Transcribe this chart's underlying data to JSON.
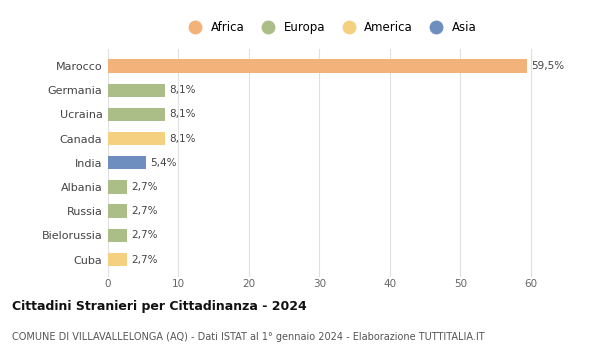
{
  "countries": [
    "Marocco",
    "Germania",
    "Ucraina",
    "Canada",
    "India",
    "Albania",
    "Russia",
    "Bielorussia",
    "Cuba"
  ],
  "values": [
    59.5,
    8.1,
    8.1,
    8.1,
    5.4,
    2.7,
    2.7,
    2.7,
    2.7
  ],
  "labels": [
    "59,5%",
    "8,1%",
    "8,1%",
    "8,1%",
    "5,4%",
    "2,7%",
    "2,7%",
    "2,7%",
    "2,7%"
  ],
  "bar_colors": [
    "#F2B27A",
    "#ABBE88",
    "#ABBE88",
    "#F5D080",
    "#6F8EC0",
    "#ABBE88",
    "#ABBE88",
    "#ABBE88",
    "#F5D080"
  ],
  "legend_order": [
    "Africa",
    "Europa",
    "America",
    "Asia"
  ],
  "legend_colors": [
    "#F2B27A",
    "#ABBE88",
    "#F5D080",
    "#6F8EC0"
  ],
  "xlim": [
    0,
    63
  ],
  "xticks": [
    0,
    10,
    20,
    30,
    40,
    50,
    60
  ],
  "title": "Cittadini Stranieri per Cittadinanza - 2024",
  "subtitle": "COMUNE DI VILLAVALLELONGA (AQ) - Dati ISTAT al 1° gennaio 2024 - Elaborazione TUTTITALIA.IT",
  "background_color": "#ffffff",
  "grid_color": "#e0e0e0"
}
